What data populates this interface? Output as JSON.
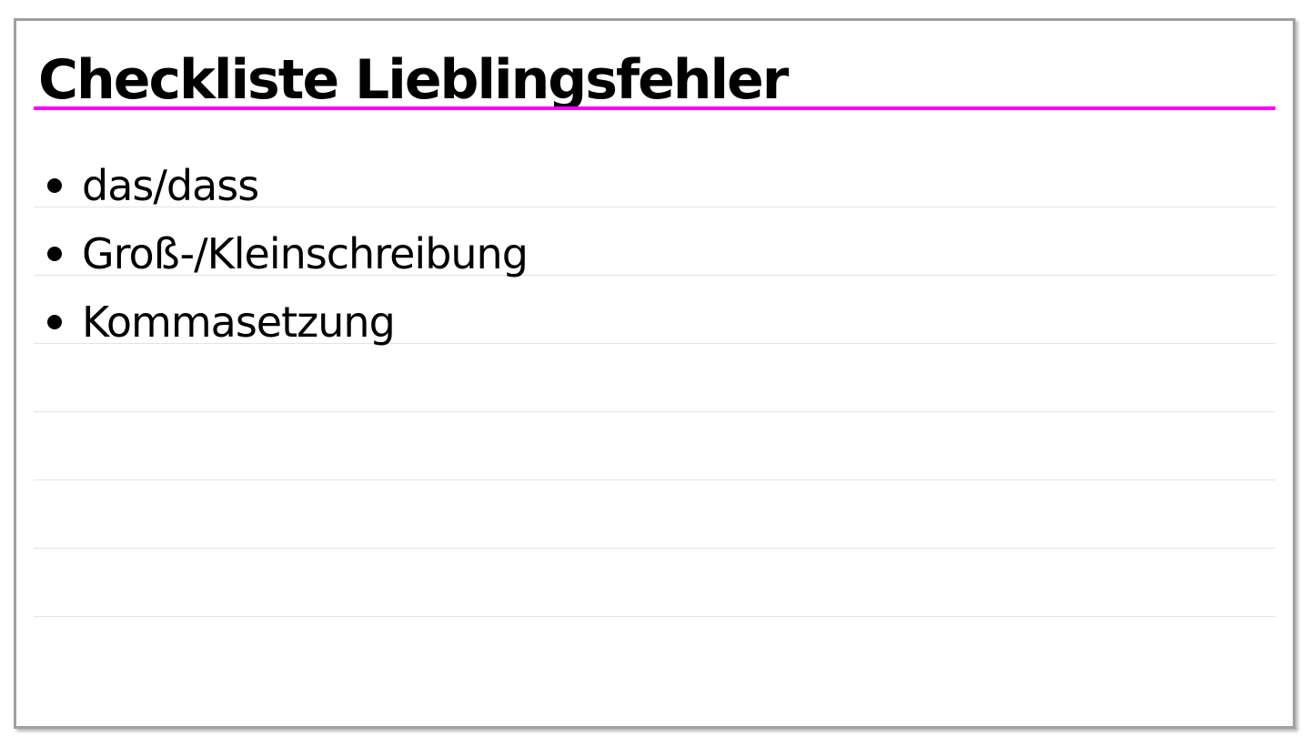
{
  "slide": {
    "title": "Checkliste Lieblingsfehler",
    "accent_color": "#ff00ff",
    "bullets": [
      {
        "label": "das/dass"
      },
      {
        "label": "Groß-/Kleinschreibung"
      },
      {
        "label": "Kommasetzung"
      }
    ]
  }
}
